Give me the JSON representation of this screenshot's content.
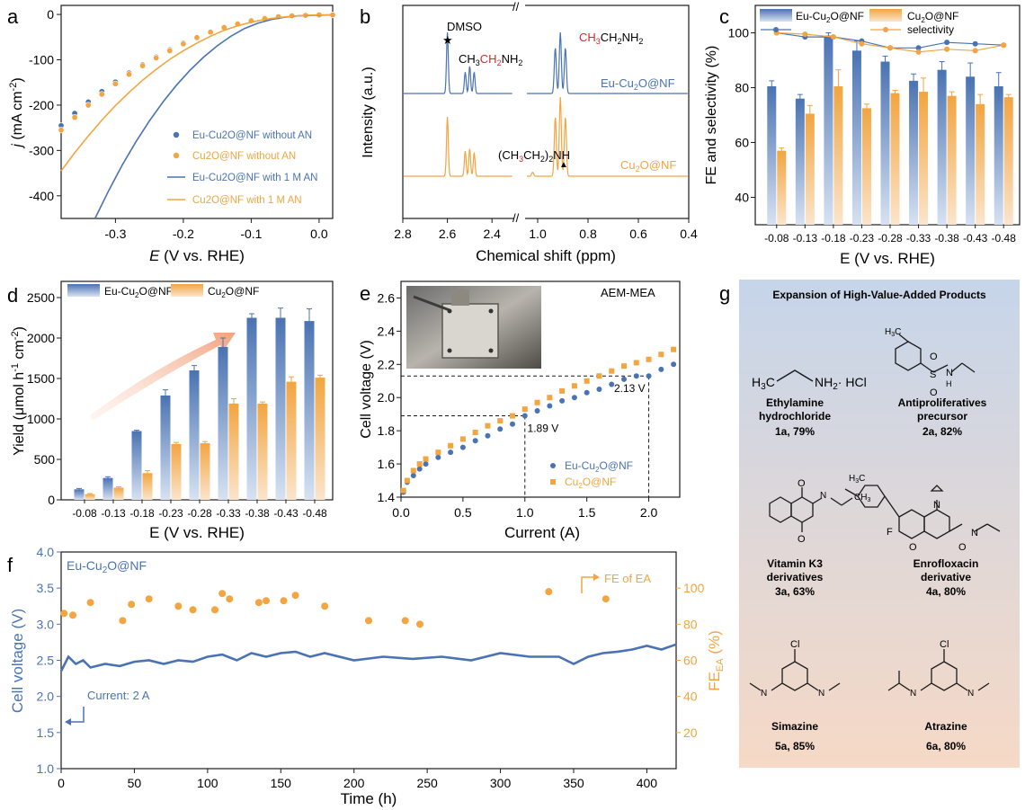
{
  "colors": {
    "blue": "#4a73b3",
    "orange": "#f2a541",
    "red": "#d9242a",
    "axis": "#1a1a1a",
    "panel_g_top": "#c6d5ea",
    "panel_g_bottom": "#f6d9c6",
    "arrow": "#f2a27e"
  },
  "chart_data": [
    {
      "panel": "a",
      "type": "line",
      "xlabel": "E (V vs. RHE)",
      "ylabel": "j (mA cm-2)",
      "xlim": [
        -0.38,
        0.02
      ],
      "ylim": [
        -450,
        20
      ],
      "xticks": [
        "-0.3",
        "-0.2",
        "-0.1",
        "0.0"
      ],
      "yticks": [
        "0",
        "-100",
        "-200",
        "-300",
        "-400"
      ],
      "legend_position": "bottom-right",
      "series": [
        {
          "name": "Eu-Cu2O@NF without AN",
          "style": "scatter",
          "color": "blue",
          "x": [
            -0.38,
            -0.36,
            -0.34,
            -0.32,
            -0.3,
            -0.28,
            -0.26,
            -0.24,
            -0.22,
            -0.2,
            -0.18,
            -0.16,
            -0.14,
            -0.12,
            -0.1,
            -0.08,
            -0.06,
            -0.04,
            -0.02,
            0.0,
            0.02
          ],
          "y": [
            -245,
            -218,
            -193,
            -170,
            -149,
            -129,
            -111,
            -94,
            -78,
            -63,
            -50,
            -38,
            -28,
            -20,
            -13,
            -8,
            -5,
            -3,
            -2,
            -1,
            -1
          ]
        },
        {
          "name": "Cu2O@NF without AN",
          "style": "scatter",
          "color": "orange",
          "x": [
            -0.38,
            -0.36,
            -0.34,
            -0.32,
            -0.3,
            -0.28,
            -0.26,
            -0.24,
            -0.22,
            -0.2,
            -0.18,
            -0.16,
            -0.14,
            -0.12,
            -0.1,
            -0.08,
            -0.06,
            -0.04,
            -0.02,
            0.0,
            0.02
          ],
          "y": [
            -255,
            -227,
            -200,
            -176,
            -153,
            -132,
            -113,
            -96,
            -80,
            -65,
            -51,
            -39,
            -29,
            -21,
            -14,
            -9,
            -5,
            -3,
            -2,
            -1,
            -1
          ]
        },
        {
          "name": "Eu-Cu2O@NF with 1 M AN",
          "style": "line",
          "color": "blue",
          "x": [
            -0.33,
            -0.31,
            -0.29,
            -0.27,
            -0.25,
            -0.23,
            -0.21,
            -0.19,
            -0.17,
            -0.15,
            -0.13,
            -0.11,
            -0.09,
            -0.07,
            -0.05,
            -0.03,
            -0.01,
            0.02
          ],
          "y": [
            -450,
            -389,
            -332,
            -281,
            -235,
            -193,
            -156,
            -123,
            -94,
            -69,
            -48,
            -31,
            -19,
            -11,
            -6,
            -3,
            -2,
            -1
          ]
        },
        {
          "name": "Cu2O@NF with 1 M AN",
          "style": "line",
          "color": "orange",
          "x": [
            -0.38,
            -0.36,
            -0.34,
            -0.32,
            -0.3,
            -0.28,
            -0.26,
            -0.24,
            -0.22,
            -0.2,
            -0.18,
            -0.16,
            -0.14,
            -0.12,
            -0.1,
            -0.08,
            -0.06,
            -0.04,
            -0.02,
            0.0,
            0.02
          ],
          "y": [
            -345,
            -305,
            -268,
            -233,
            -201,
            -172,
            -145,
            -121,
            -99,
            -80,
            -63,
            -48,
            -35,
            -25,
            -17,
            -11,
            -7,
            -4,
            -2,
            -1,
            -1
          ]
        }
      ]
    },
    {
      "panel": "b",
      "type": "line",
      "xlabel": "Chemical shift (ppm)",
      "ylabel": "Intensity (a.u.)",
      "xticks": [
        "2.8",
        "2.6",
        "2.4",
        "1.0",
        "0.8",
        "0.6",
        "0.4"
      ],
      "axis_break": "//",
      "annotations": [
        "DMSO",
        "CH3CH2NH2",
        "CH3CH2NH2",
        "(CH3CH2)2NH"
      ],
      "series": [
        {
          "name": "Eu-Cu2O@NF",
          "color": "blue",
          "peaks_ppm": [
            2.6,
            2.52,
            2.5,
            2.48,
            0.93,
            0.91,
            0.89
          ],
          "peaks_rel": [
            1.0,
            0.35,
            0.45,
            0.35,
            0.75,
            1.0,
            0.75
          ]
        },
        {
          "name": "Cu2O@NF",
          "color": "orange",
          "peaks_ppm": [
            2.6,
            2.52,
            2.5,
            2.48,
            1.02,
            0.93,
            0.91,
            0.89
          ],
          "peaks_rel": [
            0.75,
            0.32,
            0.35,
            0.3,
            0.05,
            0.75,
            1.0,
            0.75
          ]
        }
      ]
    },
    {
      "panel": "c",
      "type": "bar",
      "xlabel": "E (V vs. RHE)",
      "ylabel": "FE and selectivity (%)",
      "ylim": [
        30,
        110
      ],
      "yticks": [
        "40",
        "60",
        "80",
        "100"
      ],
      "categories": [
        "-0.08",
        "-0.13",
        "-0.18",
        "-0.23",
        "-0.28",
        "-0.33",
        "-0.38",
        "-0.43",
        "-0.48"
      ],
      "legend_entries": [
        "Eu-Cu2O@NF",
        "Cu2O@NF",
        "selectivity"
      ],
      "series": [
        {
          "name": "Eu-Cu2O@NF",
          "kind": "bar",
          "color": "blue",
          "values": [
            80.5,
            76,
            99,
            93.5,
            89.5,
            82.5,
            86.5,
            84,
            80.5
          ],
          "errors": [
            2,
            1.5,
            1,
            3.5,
            2,
            2.5,
            3,
            5,
            5
          ]
        },
        {
          "name": "Cu2O@NF",
          "kind": "bar",
          "color": "orange",
          "values": [
            57,
            70.5,
            80.5,
            72.5,
            78,
            78.5,
            77,
            74,
            76.5
          ],
          "errors": [
            1,
            3,
            6,
            1.5,
            1,
            5,
            1.5,
            3.5,
            1
          ]
        },
        {
          "kind": "line",
          "color": "blue",
          "values": [
            100,
            98.5,
            98.5,
            97,
            94.5,
            94.5,
            96.5,
            96,
            95.5
          ]
        },
        {
          "name": "selectivity",
          "kind": "line",
          "color": "orange",
          "values": [
            100,
            99.5,
            98.5,
            96,
            94.5,
            93,
            94,
            93.5,
            95.5
          ]
        }
      ]
    },
    {
      "panel": "d",
      "type": "bar",
      "xlabel": "E (V vs. RHE)",
      "ylabel": "Yield (μmol h-1 cm-2)",
      "ylim": [
        0,
        2700
      ],
      "yticks": [
        "0",
        "500",
        "1000",
        "1500",
        "2000",
        "2500"
      ],
      "categories": [
        "-0.08",
        "-0.13",
        "-0.18",
        "-0.23",
        "-0.28",
        "-0.33",
        "-0.38",
        "-0.43",
        "-0.48"
      ],
      "series": [
        {
          "name": "Eu-Cu2O@NF",
          "color": "blue",
          "values": [
            130,
            270,
            850,
            1290,
            1600,
            1890,
            2250,
            2250,
            2210
          ],
          "errors": [
            10,
            15,
            10,
            70,
            60,
            110,
            50,
            120,
            150
          ]
        },
        {
          "name": "Cu2O@NF",
          "color": "orange",
          "values": [
            70,
            150,
            330,
            690,
            700,
            1190,
            1190,
            1460,
            1510
          ],
          "errors": [
            8,
            10,
            30,
            20,
            20,
            60,
            20,
            60,
            30
          ]
        }
      ]
    },
    {
      "panel": "e",
      "type": "scatter",
      "title": "AEM-MEA",
      "xlabel": "Current (A)",
      "ylabel": "Cell voltage (V)",
      "xlim": [
        0,
        2.25
      ],
      "ylim": [
        1.4,
        2.7
      ],
      "xticks": [
        "0.0",
        "0.5",
        "1.0",
        "1.5",
        "2.0"
      ],
      "yticks": [
        "1.4",
        "1.6",
        "1.8",
        "2.0",
        "2.2",
        "2.4",
        "2.6"
      ],
      "annotations": [
        "1.89 V",
        "2.13 V"
      ],
      "series": [
        {
          "name": "Eu-Cu2O@NF",
          "color": "blue",
          "x": [
            0.02,
            0.05,
            0.1,
            0.15,
            0.2,
            0.3,
            0.4,
            0.5,
            0.6,
            0.7,
            0.8,
            0.9,
            1.0,
            1.1,
            1.2,
            1.3,
            1.4,
            1.5,
            1.6,
            1.7,
            1.8,
            1.9,
            2.0,
            2.1,
            2.2
          ],
          "y": [
            1.43,
            1.49,
            1.53,
            1.57,
            1.6,
            1.64,
            1.67,
            1.7,
            1.74,
            1.77,
            1.81,
            1.84,
            1.89,
            1.92,
            1.95,
            1.98,
            2.0,
            2.03,
            2.05,
            2.08,
            2.11,
            2.13,
            2.13,
            2.17,
            2.2
          ]
        },
        {
          "name": "Cu2O@NF",
          "color": "orange",
          "x": [
            0.02,
            0.05,
            0.1,
            0.15,
            0.2,
            0.3,
            0.4,
            0.5,
            0.6,
            0.7,
            0.8,
            0.9,
            1.0,
            1.1,
            1.2,
            1.3,
            1.4,
            1.5,
            1.6,
            1.7,
            1.8,
            1.9,
            2.0,
            2.1,
            2.2
          ],
          "y": [
            1.44,
            1.5,
            1.56,
            1.6,
            1.63,
            1.67,
            1.71,
            1.75,
            1.79,
            1.83,
            1.86,
            1.89,
            1.93,
            1.97,
            2.0,
            2.04,
            2.07,
            2.1,
            2.13,
            2.16,
            2.19,
            2.21,
            2.23,
            2.26,
            2.29
          ]
        }
      ]
    },
    {
      "panel": "f",
      "type": "line",
      "xlabel": "Time (h)",
      "ylabel": "Cell voltage (V)",
      "y2label": "FE_EA (%)",
      "xlim": [
        0,
        420
      ],
      "ylim": [
        1.0,
        4.0
      ],
      "y2lim": [
        0,
        120
      ],
      "xticks": [
        "0",
        "50",
        "100",
        "150",
        "200",
        "250",
        "300",
        "350",
        "400"
      ],
      "yticks": [
        "1.0",
        "1.5",
        "2.0",
        "2.5",
        "3.0",
        "3.5",
        "4.0"
      ],
      "y2ticks": [
        "20",
        "40",
        "60",
        "80",
        "100"
      ],
      "annotations": [
        "Eu-Cu2O@NF",
        "FE of EA",
        "Current: 2 A"
      ],
      "series": [
        {
          "name": "Cell voltage",
          "kind": "line",
          "color": "blue",
          "x": [
            0,
            5,
            10,
            15,
            20,
            30,
            40,
            50,
            60,
            70,
            80,
            90,
            100,
            110,
            120,
            130,
            140,
            150,
            160,
            170,
            180,
            200,
            220,
            240,
            260,
            280,
            300,
            320,
            340,
            350,
            360,
            370,
            380,
            390,
            400,
            410,
            420
          ],
          "y": [
            2.35,
            2.55,
            2.45,
            2.5,
            2.4,
            2.45,
            2.42,
            2.48,
            2.5,
            2.45,
            2.5,
            2.48,
            2.55,
            2.58,
            2.5,
            2.6,
            2.55,
            2.6,
            2.62,
            2.55,
            2.6,
            2.5,
            2.55,
            2.52,
            2.55,
            2.5,
            2.6,
            2.55,
            2.55,
            2.45,
            2.55,
            2.6,
            2.62,
            2.65,
            2.7,
            2.65,
            2.72
          ]
        },
        {
          "name": "FE of EA",
          "kind": "scatter",
          "color": "orange",
          "x": [
            2,
            8,
            20,
            42,
            48,
            60,
            80,
            90,
            105,
            110,
            115,
            135,
            140,
            152,
            160,
            180,
            210,
            235,
            245,
            333,
            372
          ],
          "y": [
            86,
            85,
            92,
            82,
            91,
            94,
            90,
            88,
            88,
            97,
            94,
            92,
            93,
            93,
            96,
            90,
            82,
            82,
            80,
            98,
            94
          ]
        }
      ]
    }
  ],
  "panel_g": {
    "title": "Expansion of High-Value-Added Products",
    "products": [
      {
        "formula_text": "H3C⁀NH2·HCl",
        "name": "Ethylamine hydrochloride",
        "yield": "1a, 79%"
      },
      {
        "formula_text": "",
        "name": "Antiproliferatives precursor",
        "yield": "2a, 82%"
      },
      {
        "formula_text": "",
        "name": "Vitamin K3 derivatives",
        "yield": "3a, 63%"
      },
      {
        "formula_text": "",
        "name": "Enrofloxacin derivative",
        "yield": "4a, 80%"
      },
      {
        "formula_text": "",
        "name": "Simazine",
        "yield": "5a, 85%"
      },
      {
        "formula_text": "",
        "name": "Atrazine",
        "yield": "6a, 80%"
      }
    ]
  }
}
